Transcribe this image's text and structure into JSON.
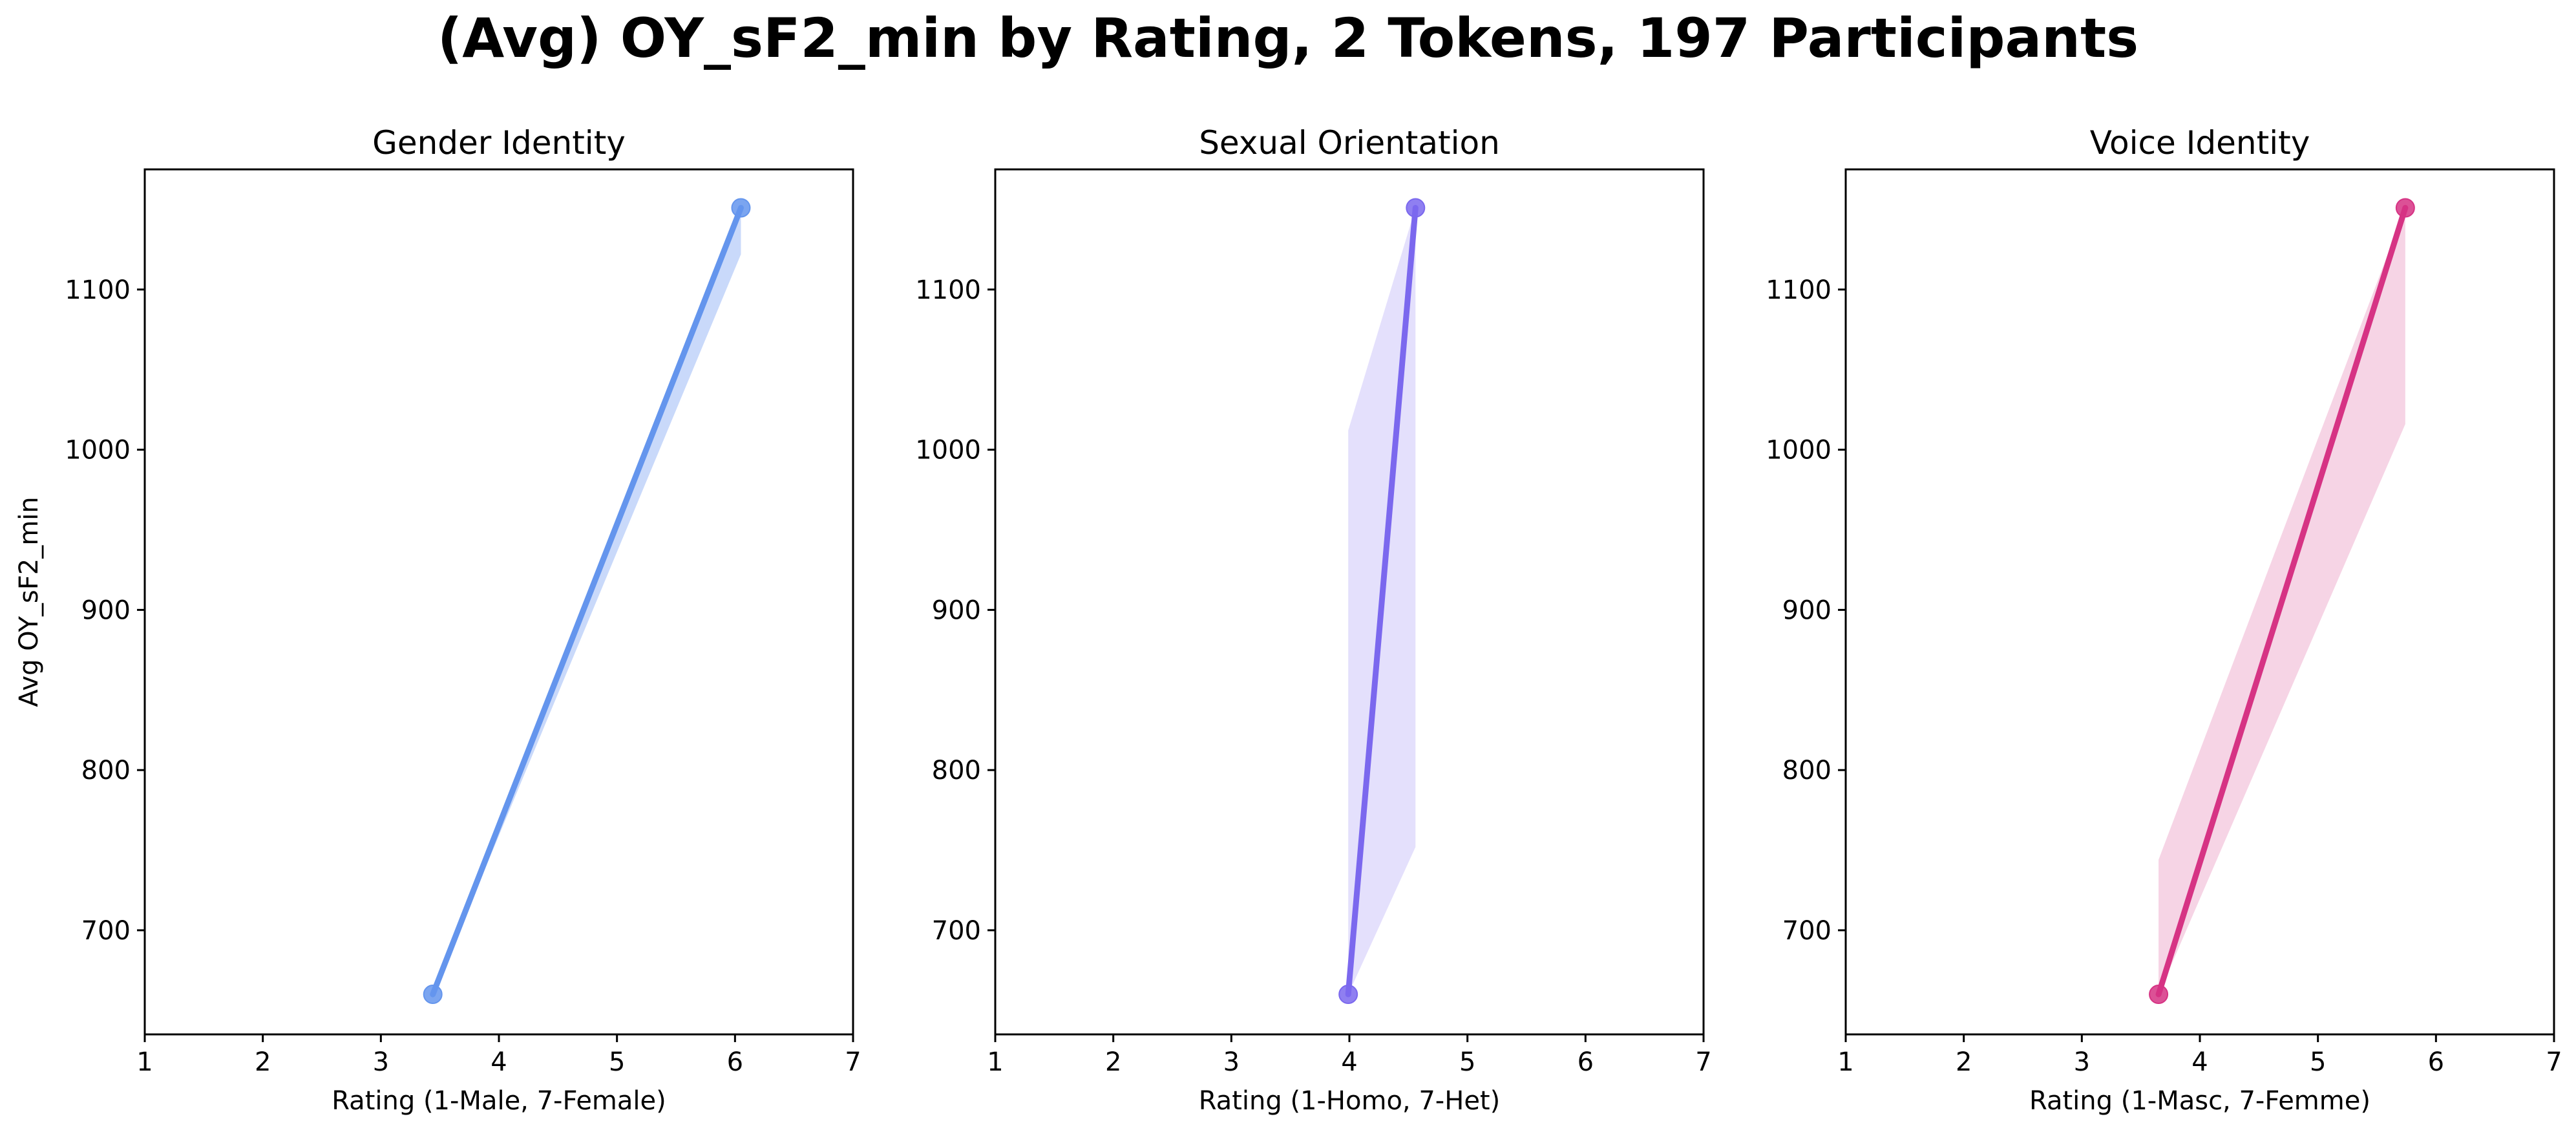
{
  "figure": {
    "title": "(Avg) OY_sF2_min by Rating, 2 Tokens, 197 Participants"
  },
  "chart_data": [
    {
      "type": "line",
      "title": "Gender Identity",
      "xlabel": "Rating (1-Male, 7-Female)",
      "ylabel": "Avg OY_sF2_min",
      "xlim": [
        1,
        7
      ],
      "ylim": [
        635,
        1175
      ],
      "xticks": [
        1,
        2,
        3,
        4,
        5,
        6,
        7
      ],
      "yticks": [
        700,
        800,
        900,
        1000,
        1100
      ],
      "color": "#6495ED",
      "band_color": "#C9D9FA",
      "x": [
        3.44,
        6.05
      ],
      "y": [
        660,
        1151
      ],
      "band": [
        {
          "x": 3.44,
          "lower": 660,
          "upper": 660
        },
        {
          "x": 6.05,
          "lower": 1122,
          "upper": 1151
        }
      ]
    },
    {
      "type": "line",
      "title": "Sexual Orientation",
      "xlabel": "Rating (1-Homo, 7-Het)",
      "ylabel": "",
      "xlim": [
        1,
        7
      ],
      "ylim": [
        635,
        1175
      ],
      "xticks": [
        1,
        2,
        3,
        4,
        5,
        6,
        7
      ],
      "yticks": [
        700,
        800,
        900,
        1000,
        1100
      ],
      "color": "#7B68EE",
      "band_color": "#E4E0FC",
      "x": [
        3.99,
        4.56
      ],
      "y": [
        660,
        1151
      ],
      "band": [
        {
          "x": 3.99,
          "lower": 660,
          "upper": 1012
        },
        {
          "x": 4.56,
          "lower": 752,
          "upper": 1151
        }
      ]
    },
    {
      "type": "line",
      "title": "Voice Identity",
      "xlabel": "Rating (1-Masc, 7-Femme)",
      "ylabel": "",
      "xlim": [
        1,
        7
      ],
      "ylim": [
        635,
        1175
      ],
      "xticks": [
        1,
        2,
        3,
        4,
        5,
        6,
        7
      ],
      "yticks": [
        700,
        800,
        900,
        1000,
        1100
      ],
      "color": "#D63384",
      "band_color": "#F6D4E5",
      "x": [
        3.65,
        5.74
      ],
      "y": [
        660,
        1151
      ],
      "band": [
        {
          "x": 3.65,
          "lower": 660,
          "upper": 744
        },
        {
          "x": 5.74,
          "lower": 1016,
          "upper": 1151
        }
      ]
    }
  ]
}
